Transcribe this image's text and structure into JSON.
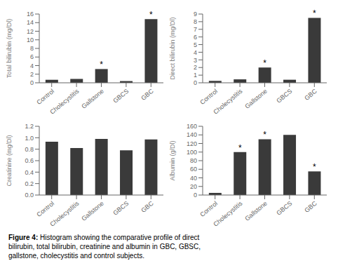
{
  "chart_data": [
    {
      "type": "bar",
      "categories": [
        "Control",
        "Cholecystitis",
        "Gallstone",
        "GBCS",
        "GBC"
      ],
      "values": [
        0.7,
        0.9,
        3.2,
        0.4,
        14.8
      ],
      "ylabel": "Total bilirubin (mg/Dl)",
      "ylim": [
        0,
        16
      ],
      "yticks": [
        0,
        2,
        4,
        6,
        8,
        10,
        12,
        14,
        16
      ],
      "color": "#3a3a3a",
      "grid": false,
      "annotations": [
        {
          "category": "Gallstone",
          "text": "*"
        },
        {
          "category": "GBC",
          "text": "*"
        }
      ]
    },
    {
      "type": "bar",
      "categories": [
        "Control",
        "Cholecystitis",
        "Gallstone",
        "GBCS",
        "GBC"
      ],
      "values": [
        0.25,
        0.45,
        2.0,
        0.4,
        8.5
      ],
      "ylabel": "Direct bilirubin (mg/Dl)",
      "ylim": [
        0,
        9
      ],
      "yticks": [
        0,
        1,
        2,
        3,
        4,
        5,
        6,
        7,
        8,
        9
      ],
      "color": "#3a3a3a",
      "grid": false,
      "annotations": [
        {
          "category": "Gallstone",
          "text": "*"
        },
        {
          "category": "GBC",
          "text": "*"
        }
      ]
    },
    {
      "type": "bar",
      "categories": [
        "Control",
        "Cholecystitis",
        "Gallstone",
        "GBCS",
        "GBC"
      ],
      "values": [
        0.93,
        0.82,
        0.98,
        0.78,
        0.97
      ],
      "ylabel": "Creatinine (mg/Dl)",
      "ylim": [
        0,
        1.2
      ],
      "yticks": [
        {
          "value": 0,
          "label": "0.0"
        },
        0.2,
        0.4,
        0.6,
        0.8,
        {
          "value": 1,
          "label": "1.0"
        },
        1.2
      ],
      "color": "#3a3a3a",
      "grid": false,
      "annotations": []
    },
    {
      "type": "bar",
      "categories": [
        "Control",
        "Cholecystitis",
        "Gallstone",
        "GBCS",
        "GBC"
      ],
      "values": [
        5.0,
        100.0,
        130.0,
        140.0,
        55.0
      ],
      "ylabel": "Albumin (g/Dl)",
      "ylim": [
        0,
        160
      ],
      "yticks": [
        0,
        20,
        40,
        60,
        80,
        100,
        120,
        140,
        160
      ],
      "color": "#3a3a3a",
      "grid": false,
      "annotations": [
        {
          "category": "Cholecystitis",
          "text": "*"
        },
        {
          "category": "Gallstone",
          "text": "*"
        },
        {
          "category": "GBC",
          "text": "*"
        }
      ]
    }
  ],
  "caption": "Figure 4: Histogram showing the comparative profile of direct\nbilirubin, total bilirubin, creatinine and albumin in GBC, GBSC,\ngallstone, cholecystitis and control subjects."
}
